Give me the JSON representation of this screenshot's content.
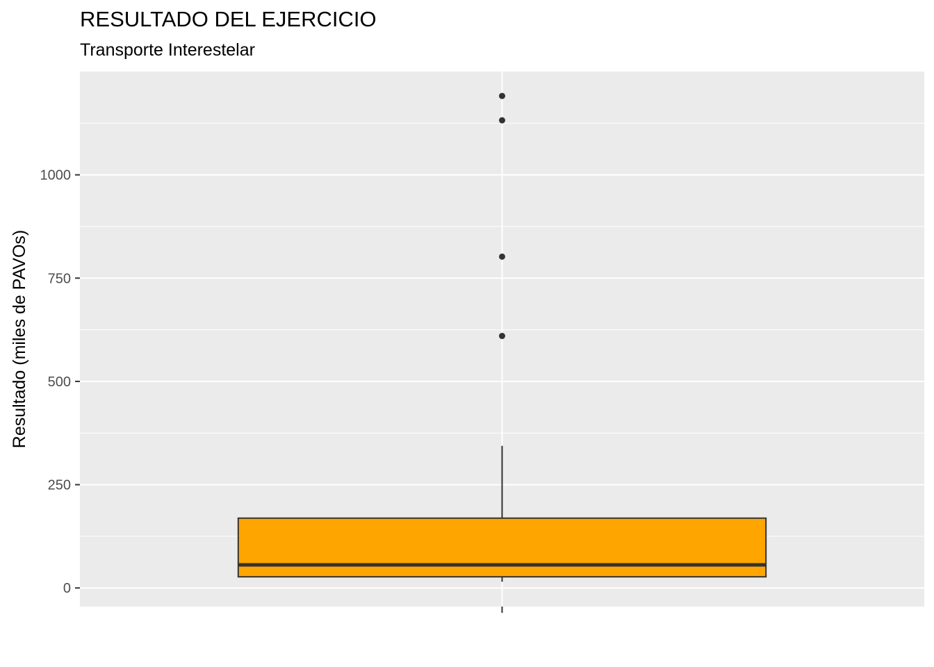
{
  "chart_data": {
    "type": "boxplot",
    "title": "RESULTADO DEL EJERCICIO",
    "subtitle": "Transporte Interestelar",
    "xlabel": "",
    "ylabel": "Resultado (miles de PAVOs)",
    "ylim": [
      -45,
      1250
    ],
    "y_ticks": [
      0,
      250,
      500,
      750,
      1000
    ],
    "y_tick_labels": [
      "0",
      "250",
      "500",
      "750",
      "1000"
    ],
    "y_minor_ticks": [
      125,
      375,
      625,
      875,
      1125
    ],
    "grid": true,
    "box": {
      "whisker_low": 15,
      "q1": 27,
      "median": 56,
      "q3": 169,
      "whisker_high": 344,
      "outliers": [
        610,
        802,
        1132,
        1191
      ]
    },
    "colors": {
      "panel": "#EBEBEB",
      "grid": "#FFFFFF",
      "box_fill": "#FFA500",
      "line": "#333333",
      "tick_label": "#4D4D4D"
    }
  }
}
